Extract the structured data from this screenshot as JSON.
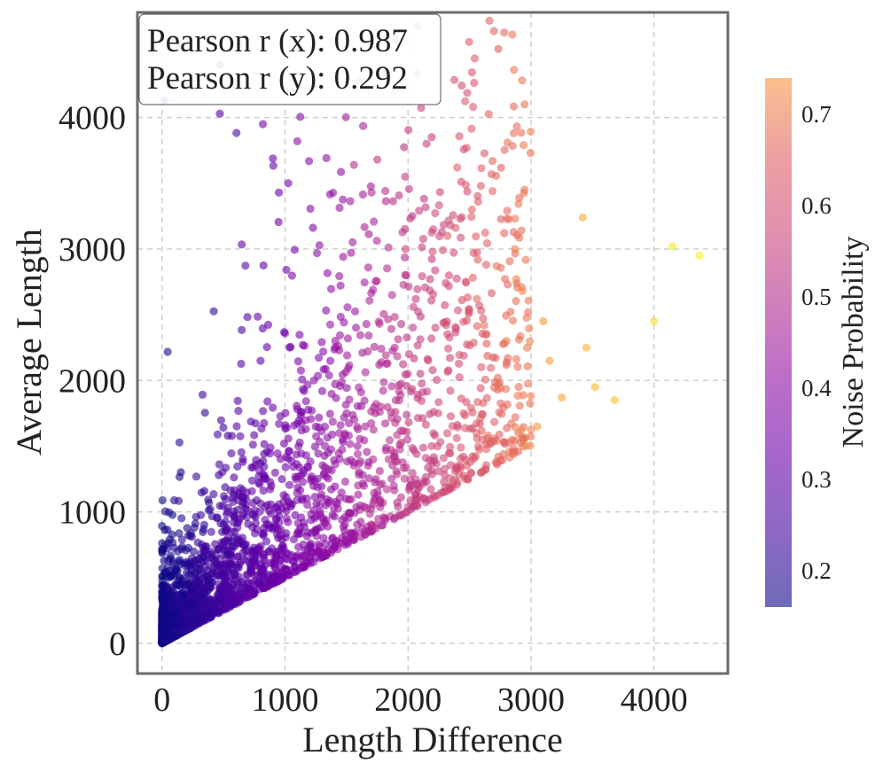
{
  "chart_data": {
    "type": "scatter",
    "title": "",
    "xlabel": "Length Difference",
    "ylabel": "Average Length",
    "xlim": [
      -200,
      4600
    ],
    "ylim": [
      -230,
      4800
    ],
    "xticks": [
      0,
      1000,
      2000,
      3000,
      4000
    ],
    "yticks": [
      0,
      1000,
      2000,
      3000,
      4000
    ],
    "grid": true,
    "annotation": {
      "line1": "Pearson r (x): 0.987",
      "line2": "Pearson r (y): 0.292"
    },
    "colorbar": {
      "label": "Noise Probability",
      "range": [
        0.16,
        0.74
      ],
      "ticks": [
        "0.2",
        "0.3",
        "0.4",
        "0.5",
        "0.6",
        "0.7"
      ],
      "colormap": "plasma",
      "alpha": 0.6
    },
    "colors": {
      "frame": "#6b6b6b",
      "grid": "#cfcfcf",
      "text": "#222222"
    },
    "highlighted_points": [
      {
        "x": 4370,
        "y": 2950,
        "noise": 0.73
      },
      {
        "x": 4150,
        "y": 3020,
        "noise": 0.72
      },
      {
        "x": 4000,
        "y": 2450,
        "noise": 0.7
      },
      {
        "x": 3680,
        "y": 1850,
        "noise": 0.66
      },
      {
        "x": 3520,
        "y": 1950,
        "noise": 0.65
      },
      {
        "x": 3450,
        "y": 2250,
        "noise": 0.64
      },
      {
        "x": 3420,
        "y": 3240,
        "noise": 0.63
      },
      {
        "x": 3250,
        "y": 1870,
        "noise": 0.62
      },
      {
        "x": 3150,
        "y": 2150,
        "noise": 0.61
      },
      {
        "x": 3100,
        "y": 2450,
        "noise": 0.6
      },
      {
        "x": 3050,
        "y": 1650,
        "noise": 0.59
      },
      {
        "x": 2960,
        "y": 1500,
        "noise": 0.58
      },
      {
        "x": 2920,
        "y": 1620,
        "noise": 0.57
      },
      {
        "x": 2930,
        "y": 2680,
        "noise": 0.57
      },
      {
        "x": 2880,
        "y": 2770,
        "noise": 0.56
      },
      {
        "x": 2870,
        "y": 3000,
        "noise": 0.56
      },
      {
        "x": 2800,
        "y": 2300,
        "noise": 0.55
      },
      {
        "x": 2720,
        "y": 2870,
        "noise": 0.54
      },
      {
        "x": 2650,
        "y": 1580,
        "noise": 0.53
      },
      {
        "x": 2620,
        "y": 2420,
        "noise": 0.53
      },
      {
        "x": 2560,
        "y": 2620,
        "noise": 0.52
      },
      {
        "x": 2520,
        "y": 3300,
        "noise": 0.51
      },
      {
        "x": 2400,
        "y": 3620,
        "noise": 0.5
      },
      {
        "x": 2320,
        "y": 3100,
        "noise": 0.49
      },
      {
        "x": 2200,
        "y": 2980,
        "noise": 0.47
      },
      {
        "x": 1980,
        "y": 3000,
        "noise": 0.45
      },
      {
        "x": 1750,
        "y": 3680,
        "noise": 0.42
      },
      {
        "x": 1560,
        "y": 3640,
        "noise": 0.4
      },
      {
        "x": 1100,
        "y": 3820,
        "noise": 0.33
      },
      {
        "x": 820,
        "y": 3950,
        "noise": 0.28
      },
      {
        "x": 470,
        "y": 4030,
        "noise": 0.24
      },
      {
        "x": 470,
        "y": 4400,
        "noise": 0.22
      },
      {
        "x": 150,
        "y": 4550,
        "noise": 0.19
      },
      {
        "x": 60,
        "y": 4250,
        "noise": 0.18
      },
      {
        "x": 20,
        "y": 4130,
        "noise": 0.17
      }
    ],
    "cloud": {
      "points": 2600,
      "x_range": [
        0,
        3000
      ],
      "relation": "y is at least about 0.5 * x; density concentrated near the origin",
      "seed": 7
    }
  }
}
